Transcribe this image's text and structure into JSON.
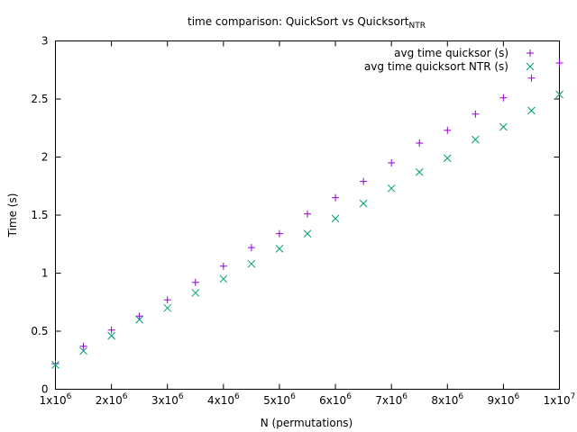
{
  "chart_data": {
    "type": "scatter",
    "title": {
      "main": "time comparison: QuickSort vs Quicksort",
      "subscript": "NTR"
    },
    "xlabel": "N (permutations)",
    "ylabel": "Time (s)",
    "xlim": [
      1000000,
      10000000
    ],
    "ylim": [
      0,
      3
    ],
    "x_ticks": [
      {
        "value": 1000000,
        "mantissa": "1x10",
        "exp": "6"
      },
      {
        "value": 2000000,
        "mantissa": "2x10",
        "exp": "6"
      },
      {
        "value": 3000000,
        "mantissa": "3x10",
        "exp": "6"
      },
      {
        "value": 4000000,
        "mantissa": "4x10",
        "exp": "6"
      },
      {
        "value": 5000000,
        "mantissa": "5x10",
        "exp": "6"
      },
      {
        "value": 6000000,
        "mantissa": "6x10",
        "exp": "6"
      },
      {
        "value": 7000000,
        "mantissa": "7x10",
        "exp": "6"
      },
      {
        "value": 8000000,
        "mantissa": "8x10",
        "exp": "6"
      },
      {
        "value": 9000000,
        "mantissa": "9x10",
        "exp": "6"
      },
      {
        "value": 10000000,
        "mantissa": "1x10",
        "exp": "7"
      }
    ],
    "y_ticks": [
      {
        "value": 0,
        "label": "0"
      },
      {
        "value": 0.5,
        "label": "0.5"
      },
      {
        "value": 1,
        "label": "1"
      },
      {
        "value": 1.5,
        "label": "1.5"
      },
      {
        "value": 2,
        "label": "2"
      },
      {
        "value": 2.5,
        "label": "2.5"
      },
      {
        "value": 3,
        "label": "3"
      }
    ],
    "x": [
      1000000,
      1500000,
      2000000,
      2500000,
      3000000,
      3500000,
      4000000,
      4500000,
      5000000,
      5500000,
      6000000,
      6500000,
      7000000,
      7500000,
      8000000,
      8500000,
      9000000,
      9500000,
      10000000
    ],
    "series": [
      {
        "name": "avg time quicksor (s)",
        "marker": "plus",
        "color": "#9400d3",
        "values": [
          0.22,
          0.37,
          0.51,
          0.63,
          0.77,
          0.92,
          1.06,
          1.22,
          1.34,
          1.51,
          1.65,
          1.79,
          1.95,
          2.12,
          2.23,
          2.37,
          2.51,
          2.68,
          2.81
        ]
      },
      {
        "name": "avg time quicksort NTR (s)",
        "marker": "cross",
        "color": "#009e73",
        "values": [
          0.21,
          0.33,
          0.46,
          0.6,
          0.7,
          0.83,
          0.95,
          1.08,
          1.21,
          1.34,
          1.47,
          1.6,
          1.73,
          1.87,
          1.99,
          2.15,
          2.26,
          2.4,
          2.54
        ]
      }
    ],
    "legend_position": "top-right",
    "grid": false
  }
}
